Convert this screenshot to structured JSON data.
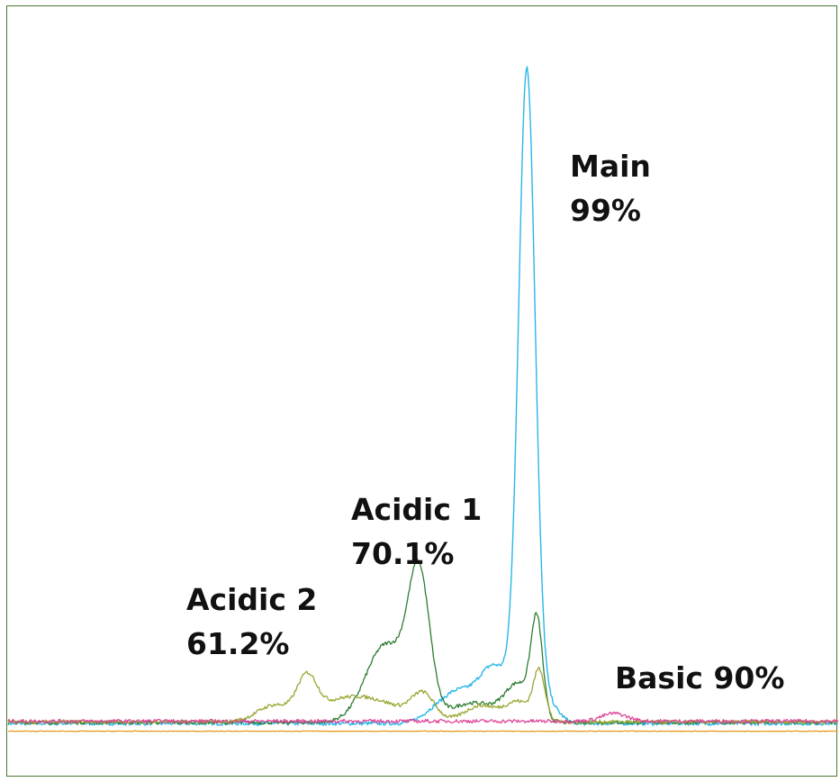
{
  "chart_data": {
    "type": "line",
    "title": "",
    "xlabel": "",
    "ylabel": "",
    "xlim": [
      0,
      100
    ],
    "ylim": [
      0,
      100
    ],
    "axes_visible": false,
    "grid": false,
    "legend": "none",
    "series": [
      {
        "color": "#29b6e8",
        "peaks": [
          {
            "x": 51.5,
            "y": 2.0,
            "w": 1.6
          },
          {
            "x": 54.0,
            "y": 3.5,
            "w": 1.5
          },
          {
            "x": 58.5,
            "y": 9.0,
            "w": 2.2
          },
          {
            "x": 62.5,
            "y": 99.0,
            "w": 1.0
          },
          {
            "x": 65.0,
            "y": 3.0,
            "w": 1.3
          }
        ]
      },
      {
        "color": "#2e7d32",
        "peaks": [
          {
            "x": 45.5,
            "y": 12.0,
            "w": 2.4
          },
          {
            "x": 49.5,
            "y": 21.5,
            "w": 1.3
          },
          {
            "x": 56.0,
            "y": 3.0,
            "w": 3.0
          },
          {
            "x": 61.5,
            "y": 5.5,
            "w": 1.6
          },
          {
            "x": 63.7,
            "y": 14.5,
            "w": 0.7
          }
        ]
      },
      {
        "color": "#9aa632",
        "peaks": [
          {
            "x": 32.0,
            "y": 2.5,
            "w": 2.0
          },
          {
            "x": 36.0,
            "y": 6.0,
            "w": 1.2
          },
          {
            "x": 40.0,
            "y": 3.0,
            "w": 3.0
          },
          {
            "x": 45.0,
            "y": 2.5,
            "w": 3.0
          },
          {
            "x": 50.0,
            "y": 4.0,
            "w": 1.4
          },
          {
            "x": 57.0,
            "y": 2.5,
            "w": 2.0
          },
          {
            "x": 61.5,
            "y": 3.0,
            "w": 1.5
          },
          {
            "x": 64.0,
            "y": 7.5,
            "w": 0.7
          }
        ]
      },
      {
        "color": "#e0469a",
        "peaks": [
          {
            "x": 73.0,
            "y": 1.2,
            "w": 1.5
          }
        ]
      },
      {
        "color": "#e69a1f",
        "peaks": []
      }
    ],
    "annotations": [
      {
        "name": "Main",
        "value": "99%"
      },
      {
        "name": "Acidic 1",
        "value": "70.1%"
      },
      {
        "name": "Acidic 2",
        "value": "61.2%"
      },
      {
        "name": "Basic",
        "value": "90%"
      }
    ]
  }
}
